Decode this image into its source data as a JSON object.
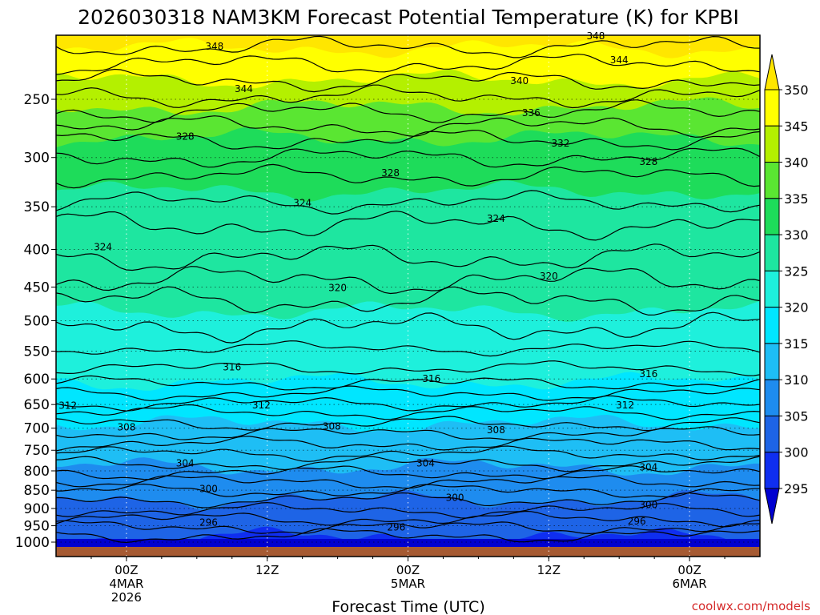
{
  "chart_data": {
    "type": "filled-contour",
    "title": "2026030318 NAM3KM Forecast Potential Temperature (K) for KPBI",
    "xlabel": "Forecast Time (UTC)",
    "ylabel": "",
    "y_ticks": [
      "250",
      "300",
      "350",
      "400",
      "450",
      "500",
      "550",
      "600",
      "650",
      "700",
      "750",
      "800",
      "850",
      "900",
      "950",
      "1000"
    ],
    "y_tick_values": [
      250,
      300,
      350,
      400,
      450,
      500,
      550,
      600,
      650,
      700,
      750,
      800,
      850,
      900,
      950,
      1000
    ],
    "ylim_hpa": [
      200,
      1020
    ],
    "x_ticks": [
      {
        "hour": 6,
        "line1": "00Z",
        "line2": "4MAR",
        "line3": "2026"
      },
      {
        "hour": 18,
        "line1": "12Z",
        "line2": "",
        "line3": ""
      },
      {
        "hour": 30,
        "line1": "00Z",
        "line2": "5MAR",
        "line3": ""
      },
      {
        "hour": 42,
        "line1": "12Z",
        "line2": "",
        "line3": ""
      },
      {
        "hour": 54,
        "line1": "00Z",
        "line2": "6MAR",
        "line3": ""
      }
    ],
    "xlim_hours": [
      0,
      60
    ],
    "colorbar_levels": [
      "295",
      "300",
      "305",
      "310",
      "315",
      "320",
      "325",
      "330",
      "335",
      "340",
      "345",
      "350"
    ],
    "colorbar_colors": [
      "#0000d0",
      "#0f2ef0",
      "#1e64e6",
      "#1e8cef",
      "#1ebef5",
      "#00e6ff",
      "#1ef0dc",
      "#1ee6a0",
      "#1edc5a",
      "#5ae632",
      "#b4f000",
      "#ffff00",
      "#ffe600"
    ],
    "contour_labels": [
      {
        "text": "348",
        "hour": 13.5,
        "hpa": 212
      },
      {
        "text": "348",
        "hour": 46,
        "hpa": 205
      },
      {
        "text": "344",
        "hour": 16,
        "hpa": 242
      },
      {
        "text": "344",
        "hour": 48,
        "hpa": 221
      },
      {
        "text": "340",
        "hour": 39.5,
        "hpa": 236
      },
      {
        "text": "336",
        "hour": 40.5,
        "hpa": 261
      },
      {
        "text": "332",
        "hour": 43,
        "hpa": 287
      },
      {
        "text": "328",
        "hour": 11,
        "hpa": 281
      },
      {
        "text": "328",
        "hour": 28.5,
        "hpa": 315
      },
      {
        "text": "328",
        "hour": 50.5,
        "hpa": 304
      },
      {
        "text": "324",
        "hour": 21,
        "hpa": 346
      },
      {
        "text": "324",
        "hour": 37.5,
        "hpa": 363
      },
      {
        "text": "324",
        "hour": 4,
        "hpa": 397
      },
      {
        "text": "320",
        "hour": 24,
        "hpa": 451
      },
      {
        "text": "320",
        "hour": 42,
        "hpa": 435
      },
      {
        "text": "316",
        "hour": 15,
        "hpa": 578
      },
      {
        "text": "316",
        "hour": 32,
        "hpa": 600
      },
      {
        "text": "316",
        "hour": 50.5,
        "hpa": 591
      },
      {
        "text": "312",
        "hour": 1,
        "hpa": 652
      },
      {
        "text": "312",
        "hour": 17.5,
        "hpa": 651
      },
      {
        "text": "312",
        "hour": 48.5,
        "hpa": 651
      },
      {
        "text": "308",
        "hour": 6,
        "hpa": 698
      },
      {
        "text": "308",
        "hour": 23.5,
        "hpa": 696
      },
      {
        "text": "308",
        "hour": 37.5,
        "hpa": 704
      },
      {
        "text": "304",
        "hour": 11,
        "hpa": 781
      },
      {
        "text": "304",
        "hour": 31.5,
        "hpa": 781
      },
      {
        "text": "304",
        "hour": 50.5,
        "hpa": 791
      },
      {
        "text": "300",
        "hour": 13,
        "hpa": 846
      },
      {
        "text": "300",
        "hour": 34,
        "hpa": 870
      },
      {
        "text": "300",
        "hour": 50.5,
        "hpa": 890
      },
      {
        "text": "296",
        "hour": 13,
        "hpa": 940
      },
      {
        "text": "296",
        "hour": 29,
        "hpa": 955
      },
      {
        "text": "296",
        "hour": 49.5,
        "hpa": 937
      }
    ],
    "color_boundaries_hpa": [
      {
        "level": 345,
        "hpa": 213
      },
      {
        "level": 340,
        "hpa": 235
      },
      {
        "level": 335,
        "hpa": 256
      },
      {
        "level": 330,
        "hpa": 282
      },
      {
        "level": 325,
        "hpa": 333
      },
      {
        "level": 320,
        "hpa": 485
      },
      {
        "level": 315,
        "hpa": 605
      },
      {
        "level": 310,
        "hpa": 690
      },
      {
        "level": 305,
        "hpa": 790
      },
      {
        "level": 300,
        "hpa": 875
      },
      {
        "level": 295,
        "hpa": 985
      }
    ],
    "contour_levels_hpa": [
      212,
      224,
      236,
      248,
      260,
      272,
      284,
      300,
      318,
      345,
      370,
      410,
      440,
      470,
      510,
      545,
      580,
      608,
      628,
      648,
      666,
      690,
      712,
      735,
      758,
      782,
      805,
      828,
      852,
      876,
      905,
      930,
      955,
      980
    ]
  },
  "credit": "coolwx.com/models"
}
